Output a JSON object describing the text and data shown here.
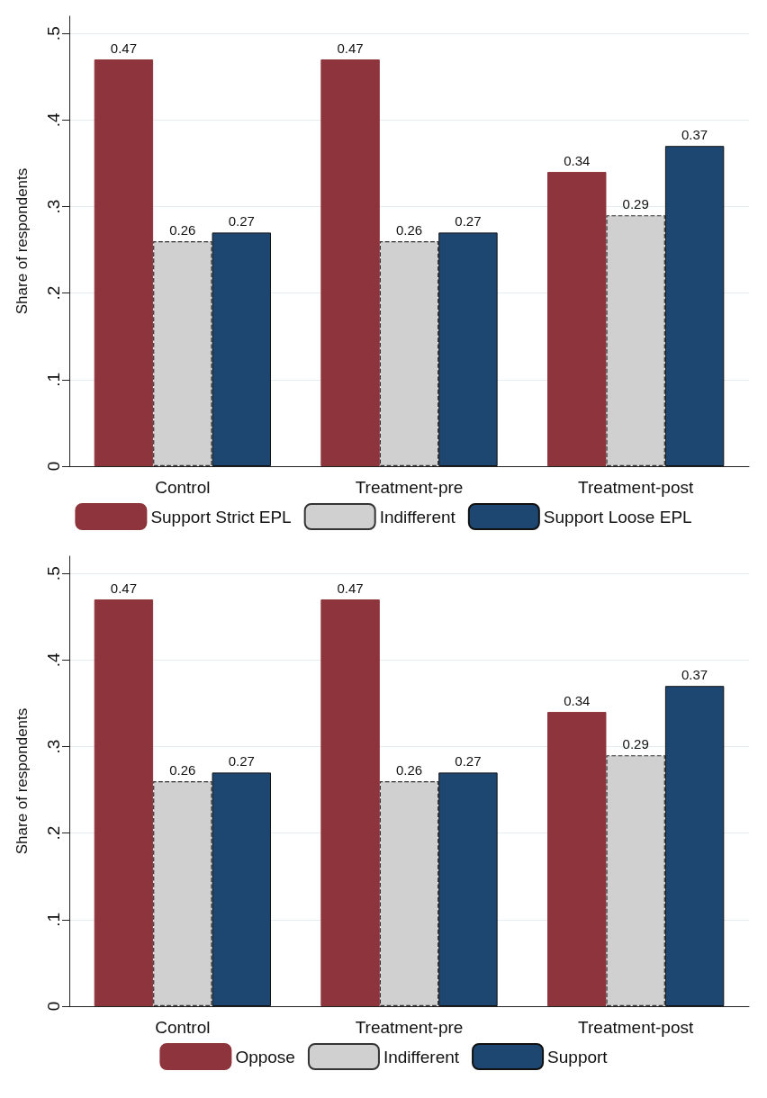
{
  "chart_data": [
    {
      "type": "bar",
      "ylabel": "Share of respondents",
      "categories": [
        "Control",
        "Treatment-pre",
        "Treatment-post"
      ],
      "series": [
        {
          "name": "Support Strict EPL",
          "color": "#8e343c",
          "values": [
            0.47,
            0.47,
            0.34
          ]
        },
        {
          "name": "Indifferent",
          "color": "#d0d0d0",
          "values": [
            0.26,
            0.26,
            0.29
          ],
          "line_style": "dashed"
        },
        {
          "name": "Support Loose EPL",
          "color": "#1d4770",
          "values": [
            0.27,
            0.27,
            0.37
          ]
        }
      ],
      "ylim": [
        0,
        0.52
      ],
      "yticks": [
        0,
        {
          "value": 0.1,
          "label": ".1"
        },
        {
          "value": 0.2,
          "label": ".2"
        },
        {
          "value": 0.3,
          "label": ".3"
        },
        {
          "value": 0.4,
          "label": ".4"
        },
        {
          "value": 0.5,
          "label": ".5"
        }
      ],
      "grid": "y",
      "legend": "bottom",
      "data_labels": true
    },
    {
      "type": "bar",
      "ylabel": "Share of respondents",
      "categories": [
        "Control",
        "Treatment-pre",
        "Treatment-post"
      ],
      "series": [
        {
          "name": "Oppose",
          "color": "#8e343c",
          "values": [
            0.47,
            0.47,
            0.34
          ]
        },
        {
          "name": "Indifferent",
          "color": "#d0d0d0",
          "values": [
            0.26,
            0.26,
            0.29
          ],
          "line_style": "dashed"
        },
        {
          "name": "Support",
          "color": "#1d4770",
          "values": [
            0.27,
            0.27,
            0.37
          ]
        }
      ],
      "ylim": [
        0,
        0.52
      ],
      "yticks": [
        0,
        {
          "value": 0.1,
          "label": ".1"
        },
        {
          "value": 0.2,
          "label": ".2"
        },
        {
          "value": 0.3,
          "label": ".3"
        },
        {
          "value": 0.4,
          "label": ".4"
        },
        {
          "value": 0.5,
          "label": ".5"
        }
      ],
      "grid": "y",
      "legend": "bottom",
      "data_labels": true
    }
  ]
}
